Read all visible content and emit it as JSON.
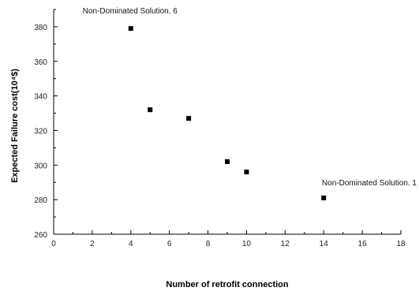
{
  "chart_data": {
    "type": "scatter",
    "xlabel": "Number of retrofit connection",
    "ylabel": "Expected Failure cost(10⁴$)",
    "xlim": [
      0,
      18
    ],
    "ylim": [
      260,
      390
    ],
    "x_ticks": [
      "0",
      "2",
      "4",
      "6",
      "8",
      "10",
      "12",
      "14",
      "16",
      "18"
    ],
    "y_ticks": [
      "260",
      "280",
      "300",
      "320",
      "340",
      "360",
      "380"
    ],
    "grid": false,
    "marker": "square",
    "marker_color": "#000000",
    "points": [
      {
        "x": 4,
        "y": 379
      },
      {
        "x": 5,
        "y": 332
      },
      {
        "x": 7,
        "y": 327
      },
      {
        "x": 9,
        "y": 302
      },
      {
        "x": 10,
        "y": 296
      },
      {
        "x": 14,
        "y": 281
      }
    ],
    "annotations": [
      {
        "text": "Non-Dominated Solution. 6",
        "x": 4,
        "y": 379
      },
      {
        "text": "Non-Dominated Solution. 1",
        "x": 14,
        "y": 281
      }
    ]
  }
}
